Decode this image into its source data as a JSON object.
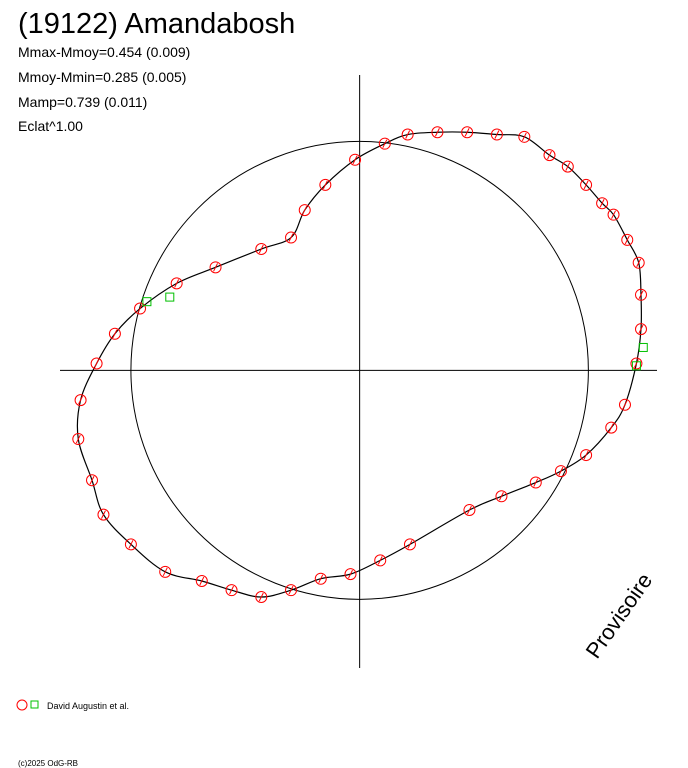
{
  "chart_data": {
    "type": "polar-scatter",
    "title": "(19122) Amandabosh",
    "annotations": [
      "Mmax-Mmoy=0.454 (0.009)",
      "Mmoy-Mmin=0.285 (0.005)",
      "Mamp=0.739 (0.011)",
      "Eclat^1.00"
    ],
    "watermark": "Provisoire",
    "copyright": "(c)2025 OdG-RB",
    "legend_label": "David Augustin et al.",
    "xlim": [
      -1.31,
      1.3
    ],
    "ylim": [
      -1.3,
      1.29
    ],
    "circle_radius": 1,
    "series": [
      {
        "color": "#ff0000",
        "marker": "circle",
        "x": [
          0.21,
          0.34,
          0.47,
          0.6,
          0.72,
          0.83,
          0.91,
          0.99,
          1.06,
          1.11,
          1.17,
          1.22,
          1.23,
          1.23,
          1.21,
          1.16,
          1.1,
          0.99,
          0.88,
          0.77,
          0.62,
          0.48,
          0.22,
          0.09,
          -0.04,
          -0.17,
          -0.3,
          -0.43,
          -0.56,
          -0.69,
          -0.85,
          -1.0,
          -1.12,
          -1.17,
          -1.23,
          -1.22,
          -1.15,
          -1.07,
          -0.96,
          -0.8,
          -0.63,
          -0.43,
          -0.3,
          -0.24,
          -0.15,
          -0.02,
          0.11
        ],
        "values": [
          1.03,
          1.04,
          1.04,
          1.03,
          1.02,
          0.94,
          0.89,
          0.81,
          0.73,
          0.68,
          0.57,
          0.47,
          0.33,
          0.18,
          0.03,
          -0.15,
          -0.25,
          -0.37,
          -0.44,
          -0.49,
          -0.55,
          -0.61,
          -0.76,
          -0.83,
          -0.89,
          -0.91,
          -0.96,
          -0.99,
          -0.96,
          -0.92,
          -0.88,
          -0.76,
          -0.63,
          -0.48,
          -0.3,
          -0.13,
          0.03,
          0.16,
          0.27,
          0.38,
          0.45,
          0.53,
          0.58,
          0.7,
          0.81,
          0.92,
          0.99
        ]
      },
      {
        "color": "#00c000",
        "marker": "square",
        "x": [
          -0.93,
          -0.83,
          1.24,
          1.21
        ],
        "values": [
          0.3,
          0.32,
          0.1,
          0.02
        ]
      }
    ]
  }
}
